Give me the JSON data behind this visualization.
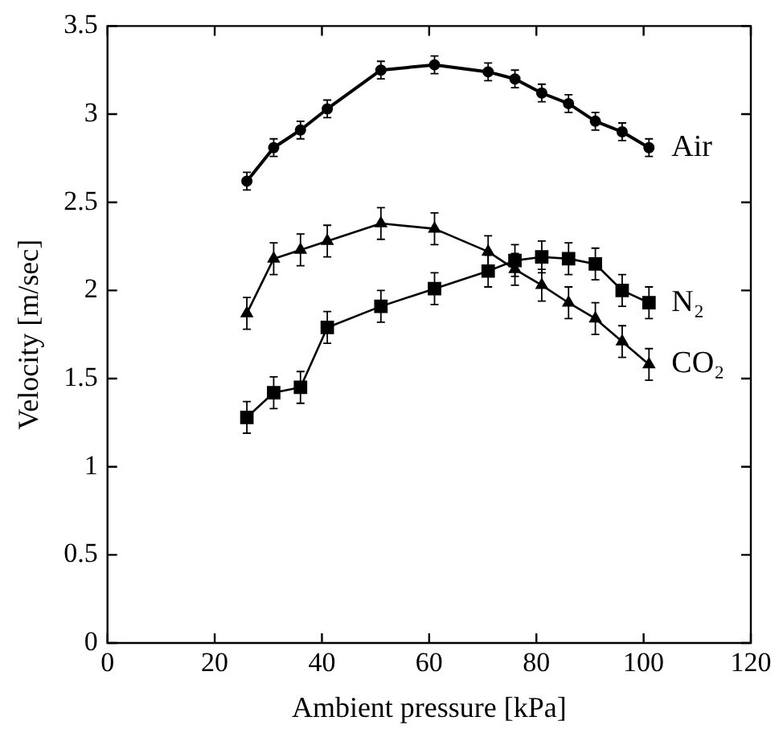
{
  "chart_data": {
    "type": "line",
    "xlabel": "Ambient pressure [kPa]",
    "ylabel": "Velocity [m/sec]",
    "xlim": [
      0,
      120
    ],
    "xticks": [
      0,
      20,
      40,
      60,
      80,
      100,
      120
    ],
    "ylim": [
      0,
      3.5
    ],
    "yticks": [
      0,
      0.5,
      1,
      1.5,
      2,
      2.5,
      3,
      3.5
    ],
    "grid": false,
    "legend": "right",
    "x": [
      26,
      31,
      36,
      41,
      51,
      61,
      71,
      76,
      81,
      86,
      91,
      96,
      101
    ],
    "series": [
      {
        "name": "Air",
        "color": "#000000",
        "marker": "circle",
        "values": [
          2.62,
          2.81,
          2.91,
          3.03,
          3.25,
          3.28,
          3.24,
          3.2,
          3.12,
          3.06,
          2.96,
          2.9,
          2.81
        ],
        "errors": [
          0.05,
          0.05,
          0.05,
          0.05,
          0.05,
          0.05,
          0.05,
          0.05,
          0.05,
          0.05,
          0.05,
          0.05,
          0.05
        ]
      },
      {
        "name": "N₂",
        "color": "#000000",
        "marker": "square",
        "values": [
          1.28,
          1.42,
          1.45,
          1.79,
          1.91,
          2.01,
          2.11,
          2.17,
          2.19,
          2.18,
          2.15,
          2.0,
          1.93
        ],
        "errors": [
          0.09,
          0.09,
          0.09,
          0.09,
          0.09,
          0.09,
          0.09,
          0.09,
          0.09,
          0.09,
          0.09,
          0.09,
          0.09
        ]
      },
      {
        "name": "CO₂",
        "color": "#000000",
        "marker": "triangle",
        "values": [
          1.87,
          2.18,
          2.23,
          2.28,
          2.38,
          2.35,
          2.22,
          2.12,
          2.03,
          1.93,
          1.84,
          1.71,
          1.58
        ],
        "errors": [
          0.09,
          0.09,
          0.09,
          0.09,
          0.09,
          0.09,
          0.09,
          0.09,
          0.09,
          0.09,
          0.09,
          0.09,
          0.09
        ]
      }
    ]
  }
}
